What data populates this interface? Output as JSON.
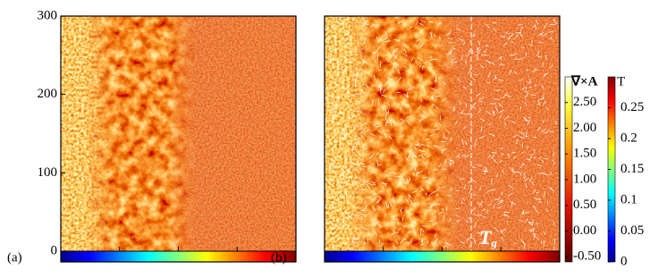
{
  "chart_data": [
    {
      "type": "heatmap",
      "panel_label": "(a)",
      "ylim": [
        0,
        300
      ],
      "yticks": [
        0,
        100,
        200,
        300
      ]
    },
    {
      "type": "heatmap",
      "panel_label": "(b)",
      "ylim": [
        0,
        300
      ],
      "annotation": {
        "text": "T",
        "subscript": "g"
      },
      "colorbars": [
        {
          "title": "∇×A",
          "clim": [
            -0.6,
            3.0
          ],
          "ticks": [
            {
              "value": 2.5,
              "label": "2.50"
            },
            {
              "value": 2,
              "label": "2.00"
            },
            {
              "value": 1.5,
              "label": "1.50"
            },
            {
              "value": 1,
              "label": "1.00"
            },
            {
              "value": 0.5,
              "label": "0.50"
            },
            {
              "value": 0,
              "label": "0.00"
            },
            {
              "value": -0.5,
              "label": "-0.50"
            }
          ]
        },
        {
          "title": "T",
          "clim": [
            0,
            0.3
          ],
          "ticks": [
            0.25,
            0.2,
            0.15,
            0.1,
            0.05,
            0
          ]
        }
      ]
    }
  ]
}
